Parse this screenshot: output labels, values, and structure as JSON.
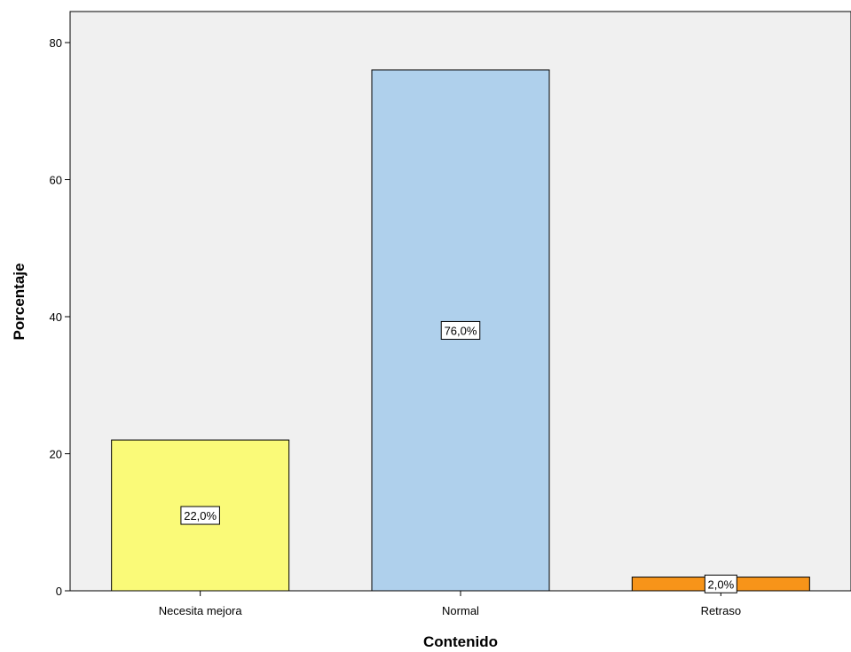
{
  "chart_data": {
    "type": "bar",
    "categories": [
      "Necesita mejora",
      "Normal",
      "Retraso"
    ],
    "values": [
      22.0,
      76.0,
      2.0
    ],
    "data_labels": [
      "22,0%",
      "76,0%",
      "2,0%"
    ],
    "bar_colors": [
      "#fafa78",
      "#afd0ec",
      "#f79419"
    ],
    "plot_background": "#f0f0f0",
    "title": "",
    "xlabel": "Contenido",
    "ylabel": "Porcentaje",
    "ylim": [
      0,
      85
    ],
    "yticks": [
      0,
      20,
      40,
      60,
      80
    ],
    "ytick_labels": [
      "0",
      "20",
      "40",
      "60",
      "80"
    ],
    "grid": false,
    "legend": "none"
  }
}
